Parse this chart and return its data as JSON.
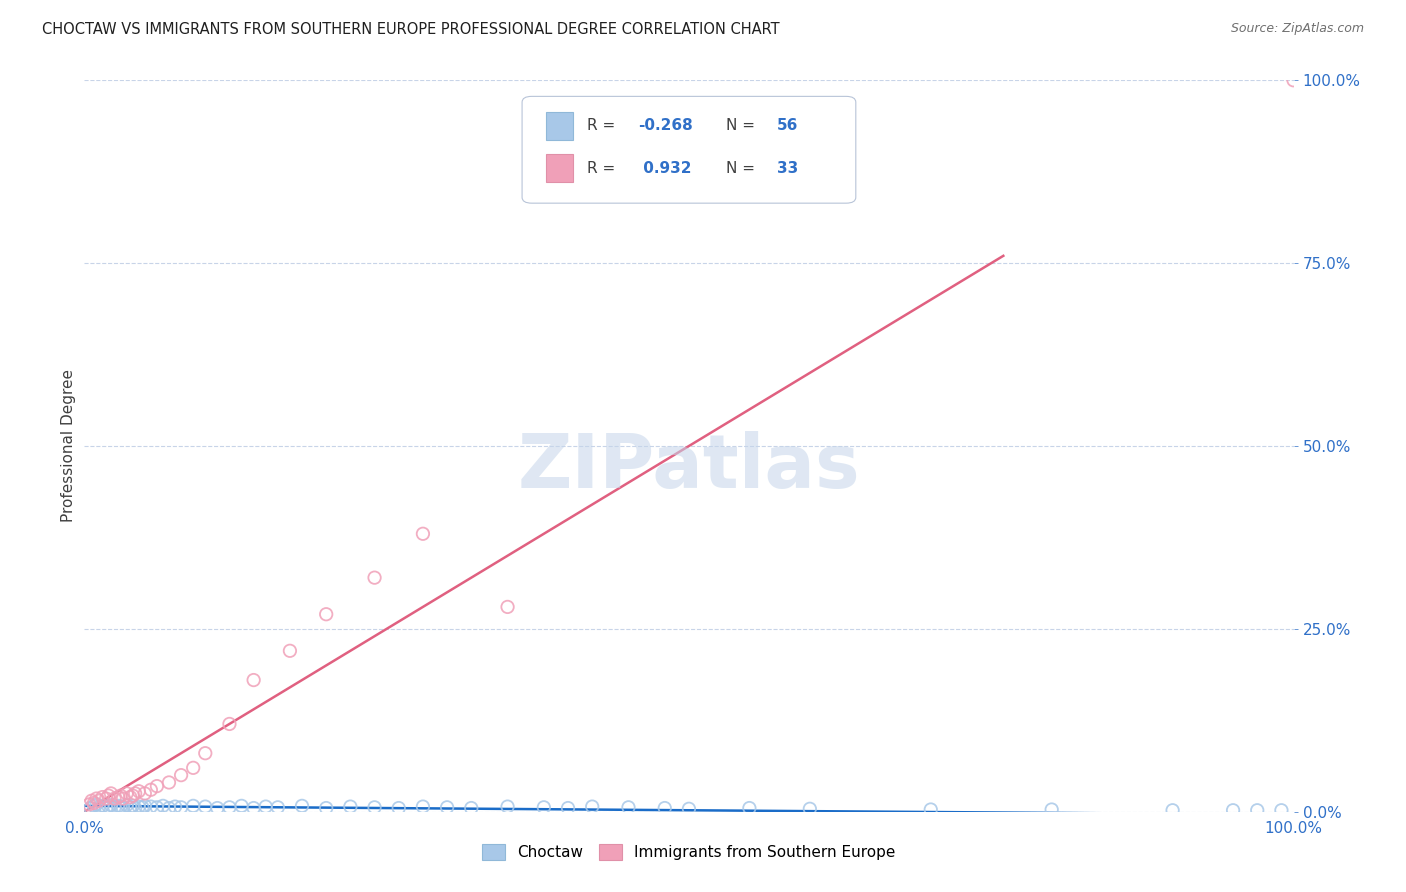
{
  "title": "CHOCTAW VS IMMIGRANTS FROM SOUTHERN EUROPE PROFESSIONAL DEGREE CORRELATION CHART",
  "source_text": "Source: ZipAtlas.com",
  "ylabel": "Professional Degree",
  "watermark": "ZIPatlas",
  "xlim": [
    0,
    1
  ],
  "ylim": [
    0,
    1
  ],
  "xtick_labels": [
    "0.0%",
    "100.0%"
  ],
  "ytick_labels_right": [
    "0.0%",
    "25.0%",
    "50.0%",
    "75.0%",
    "100.0%"
  ],
  "ytick_positions_right": [
    0.0,
    0.25,
    0.5,
    0.75,
    1.0
  ],
  "blue_scatter_color": "#a8c8e8",
  "pink_scatter_color": "#f0a0b8",
  "blue_line_color": "#1a6cc8",
  "pink_line_color": "#e06080",
  "background_color": "#ffffff",
  "grid_color": "#c8d4e8",
  "title_color": "#202020",
  "source_color": "#707070",
  "axis_label_color": "#404040",
  "right_tick_color": "#3070c8",
  "legend_box_color": "#f0f4f8",
  "legend_border_color": "#c0c8d8",
  "R_blue": -0.268,
  "N_blue": 56,
  "R_pink": 0.932,
  "N_pink": 33,
  "blue_line_x": [
    0.0,
    1.0
  ],
  "blue_line_y": [
    0.008,
    -0.004
  ],
  "pink_line_x": [
    0.0,
    0.76
  ],
  "pink_line_y": [
    0.0,
    0.76
  ],
  "choctaw_x": [
    0.005,
    0.008,
    0.01,
    0.012,
    0.015,
    0.018,
    0.02,
    0.022,
    0.025,
    0.028,
    0.03,
    0.032,
    0.035,
    0.038,
    0.04,
    0.042,
    0.045,
    0.048,
    0.05,
    0.055,
    0.06,
    0.065,
    0.07,
    0.075,
    0.08,
    0.09,
    0.1,
    0.11,
    0.12,
    0.13,
    0.14,
    0.15,
    0.16,
    0.18,
    0.2,
    0.22,
    0.24,
    0.26,
    0.28,
    0.3,
    0.32,
    0.35,
    0.38,
    0.4,
    0.42,
    0.45,
    0.48,
    0.5,
    0.55,
    0.6,
    0.7,
    0.8,
    0.9,
    0.95,
    0.97,
    0.99
  ],
  "choctaw_y": [
    0.005,
    0.008,
    0.01,
    0.006,
    0.008,
    0.005,
    0.007,
    0.009,
    0.006,
    0.008,
    0.007,
    0.005,
    0.009,
    0.006,
    0.008,
    0.005,
    0.007,
    0.006,
    0.008,
    0.007,
    0.006,
    0.008,
    0.005,
    0.007,
    0.006,
    0.008,
    0.007,
    0.005,
    0.006,
    0.008,
    0.005,
    0.007,
    0.006,
    0.008,
    0.005,
    0.007,
    0.006,
    0.005,
    0.007,
    0.006,
    0.005,
    0.007,
    0.006,
    0.005,
    0.007,
    0.006,
    0.005,
    0.004,
    0.005,
    0.004,
    0.003,
    0.003,
    0.002,
    0.002,
    0.002,
    0.002
  ],
  "immig_x": [
    0.004,
    0.006,
    0.008,
    0.01,
    0.012,
    0.015,
    0.018,
    0.02,
    0.022,
    0.025,
    0.028,
    0.03,
    0.032,
    0.035,
    0.038,
    0.04,
    0.042,
    0.045,
    0.05,
    0.055,
    0.06,
    0.07,
    0.08,
    0.09,
    0.1,
    0.12,
    0.14,
    0.17,
    0.2,
    0.24,
    0.28,
    0.35,
    1.0
  ],
  "immig_y": [
    0.01,
    0.015,
    0.012,
    0.018,
    0.015,
    0.02,
    0.018,
    0.022,
    0.025,
    0.018,
    0.02,
    0.022,
    0.018,
    0.025,
    0.02,
    0.022,
    0.025,
    0.028,
    0.025,
    0.03,
    0.035,
    0.04,
    0.05,
    0.06,
    0.08,
    0.12,
    0.18,
    0.22,
    0.27,
    0.32,
    0.38,
    0.28,
    1.0
  ]
}
